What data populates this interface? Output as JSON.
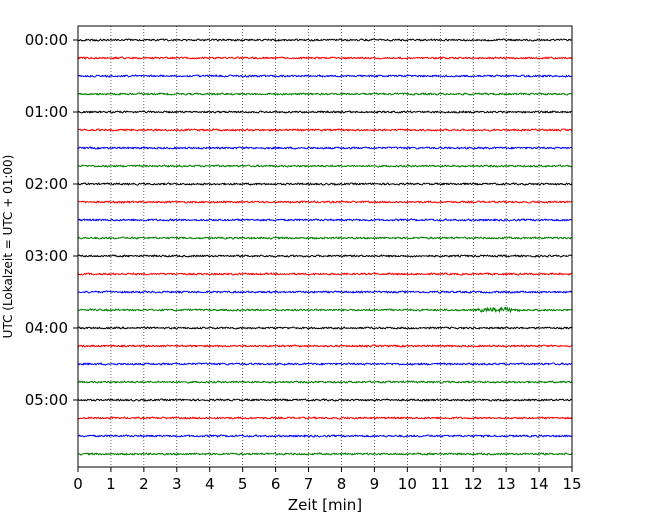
{
  "chart_data": {
    "type": "line",
    "title": "",
    "xlabel": "Zeit  [min]",
    "ylabel": "UTC (Lokalzeit = UTC + 01:00)",
    "xlim": [
      0,
      15
    ],
    "x_ticks": [
      "0",
      "1",
      "2",
      "3",
      "4",
      "5",
      "6",
      "7",
      "8",
      "9",
      "10",
      "11",
      "12",
      "13",
      "14",
      "15"
    ],
    "y_tick_labels": [
      "00:00",
      "01:00",
      "02:00",
      "03:00",
      "04:00",
      "05:00"
    ],
    "grid": "vertical dotted at each minute",
    "traces_per_hour": 4,
    "trace_minutes": 15,
    "trace_colors": [
      "#000000",
      "#ff0000",
      "#0000ff",
      "#008000"
    ],
    "traces": [
      {
        "start": "00:00",
        "color": "#000000"
      },
      {
        "start": "00:15",
        "color": "#ff0000"
      },
      {
        "start": "00:30",
        "color": "#0000ff"
      },
      {
        "start": "00:45",
        "color": "#008000"
      },
      {
        "start": "01:00",
        "color": "#000000"
      },
      {
        "start": "01:15",
        "color": "#ff0000"
      },
      {
        "start": "01:30",
        "color": "#0000ff"
      },
      {
        "start": "01:45",
        "color": "#008000"
      },
      {
        "start": "02:00",
        "color": "#000000"
      },
      {
        "start": "02:15",
        "color": "#ff0000"
      },
      {
        "start": "02:30",
        "color": "#0000ff"
      },
      {
        "start": "02:45",
        "color": "#008000"
      },
      {
        "start": "03:00",
        "color": "#000000"
      },
      {
        "start": "03:15",
        "color": "#ff0000"
      },
      {
        "start": "03:30",
        "color": "#0000ff"
      },
      {
        "start": "03:45",
        "color": "#008000",
        "event_minutes": [
          12,
          13.5
        ]
      },
      {
        "start": "04:00",
        "color": "#000000"
      },
      {
        "start": "04:15",
        "color": "#ff0000"
      },
      {
        "start": "04:30",
        "color": "#0000ff"
      },
      {
        "start": "04:45",
        "color": "#008000"
      },
      {
        "start": "05:00",
        "color": "#000000"
      },
      {
        "start": "05:15",
        "color": "#ff0000"
      },
      {
        "start": "05:30",
        "color": "#0000ff"
      },
      {
        "start": "05:45",
        "color": "#008000"
      }
    ]
  }
}
